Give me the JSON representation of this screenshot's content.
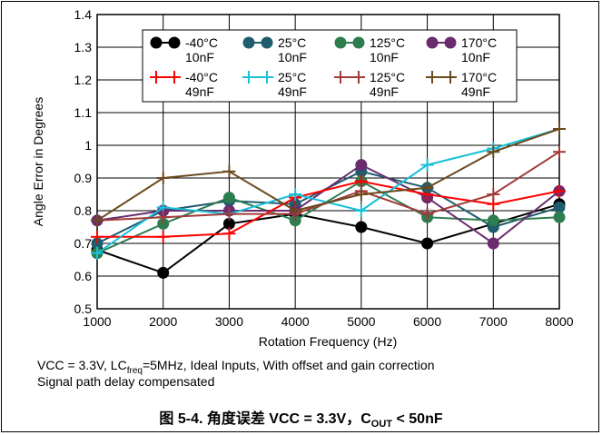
{
  "chart_data": {
    "type": "line",
    "xlabel": "Rotation Frequency (Hz)",
    "ylabel": "Angle Error in Degrees",
    "xlim": [
      1000,
      8000
    ],
    "ylim": [
      0.5,
      1.4
    ],
    "grid": true,
    "legend_position": "top-center",
    "x": [
      1000,
      2000,
      3000,
      4000,
      5000,
      6000,
      7000,
      8000
    ],
    "x_tick_labels": [
      "1000",
      "2000",
      "3000",
      "4000",
      "5000",
      "6000",
      "7000",
      "8000"
    ],
    "y_tick_labels": [
      "0.5",
      "0.6",
      "0.7",
      "0.8",
      "0.9",
      "1",
      "1.1",
      "1.2",
      "1.3",
      "1.4"
    ],
    "series": [
      {
        "name": "-40°C 10nF",
        "line1": "-40°C",
        "line2": "10nF",
        "color": "#000000",
        "marker": "circle",
        "values": [
          0.68,
          0.61,
          0.76,
          0.79,
          0.75,
          0.7,
          0.76,
          0.82
        ]
      },
      {
        "name": "25°C 10nF",
        "line1": "25°C",
        "line2": "10nF",
        "color": "#1f5c6e",
        "marker": "circle",
        "values": [
          0.7,
          0.8,
          0.83,
          0.82,
          0.92,
          0.87,
          0.75,
          0.81
        ]
      },
      {
        "name": "125°C 10nF",
        "line1": "125°C",
        "line2": "10nF",
        "color": "#2e7d4f",
        "marker": "circle",
        "values": [
          0.67,
          0.76,
          0.84,
          0.77,
          0.89,
          0.78,
          0.77,
          0.78
        ]
      },
      {
        "name": "170°C 10nF",
        "line1": "170°C",
        "line2": "10nF",
        "color": "#6a2c6e",
        "marker": "circle",
        "values": [
          0.77,
          0.8,
          0.8,
          0.8,
          0.94,
          0.84,
          0.7,
          0.86
        ]
      },
      {
        "name": "-40°C 49nF",
        "line1": "-40°C",
        "line2": "49nF",
        "color": "#ff0000",
        "marker": "plus",
        "values": [
          0.72,
          0.72,
          0.73,
          0.84,
          0.89,
          0.85,
          0.82,
          0.86
        ]
      },
      {
        "name": "25°C 49nF",
        "line1": "25°C",
        "line2": "49nF",
        "color": "#17c0d8",
        "marker": "plus",
        "values": [
          0.67,
          0.81,
          0.79,
          0.85,
          0.8,
          0.94,
          0.99,
          1.05
        ]
      },
      {
        "name": "125°C 49nF",
        "line1": "125°C",
        "line2": "49nF",
        "color": "#a23a3a",
        "marker": "plus",
        "values": [
          0.77,
          0.78,
          0.79,
          0.79,
          0.86,
          0.79,
          0.85,
          0.98
        ]
      },
      {
        "name": "170°C 49nF",
        "line1": "170°C",
        "line2": "49nF",
        "color": "#6b4a1e",
        "marker": "plus",
        "values": [
          0.77,
          0.9,
          0.92,
          0.8,
          0.85,
          0.87,
          0.98,
          1.05
        ]
      }
    ]
  },
  "notes": {
    "line1_a": "VCC = 3.3V, LC",
    "line1_sub": "freq",
    "line1_b": "=5MHz, Ideal Inputs, With offset and gain correction",
    "line2": "Signal path delay compensated"
  },
  "caption": {
    "a": "图 5-4. 角度误差 VCC = 3.3V，C",
    "sub": "OUT",
    "b": " < 50nF"
  }
}
